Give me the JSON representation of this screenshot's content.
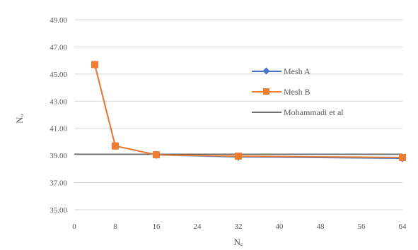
{
  "chart_data": {
    "type": "line",
    "title": "",
    "xlabel": "Nₑ",
    "ylabel": "Nᵤ",
    "xlim": [
      0,
      64
    ],
    "ylim": [
      35,
      49
    ],
    "x_ticks": [
      0,
      8,
      16,
      24,
      32,
      40,
      48,
      56,
      64
    ],
    "y_ticks": [
      "35.00",
      "37.00",
      "39.00",
      "41.00",
      "43.00",
      "45.00",
      "47.00",
      "49.00"
    ],
    "grid": "horizontal",
    "legend_position": "right",
    "colors": {
      "mesh_a": "#4472C4",
      "mesh_b": "#ED7D31",
      "mohammadi": "#404040",
      "grid": "#D9D9D9"
    },
    "series": [
      {
        "name": "Mesh A",
        "marker": "diamond",
        "x": [
          4,
          8,
          16,
          32,
          64
        ],
        "y": [
          45.7,
          39.7,
          39.05,
          38.9,
          38.8
        ]
      },
      {
        "name": "Mesh B",
        "marker": "square",
        "x": [
          4,
          8,
          16,
          32,
          64
        ],
        "y": [
          45.7,
          39.7,
          39.05,
          38.95,
          38.85
        ]
      },
      {
        "name": "Mohammadi et al",
        "marker": "none",
        "reference_line": 39.1
      }
    ]
  }
}
